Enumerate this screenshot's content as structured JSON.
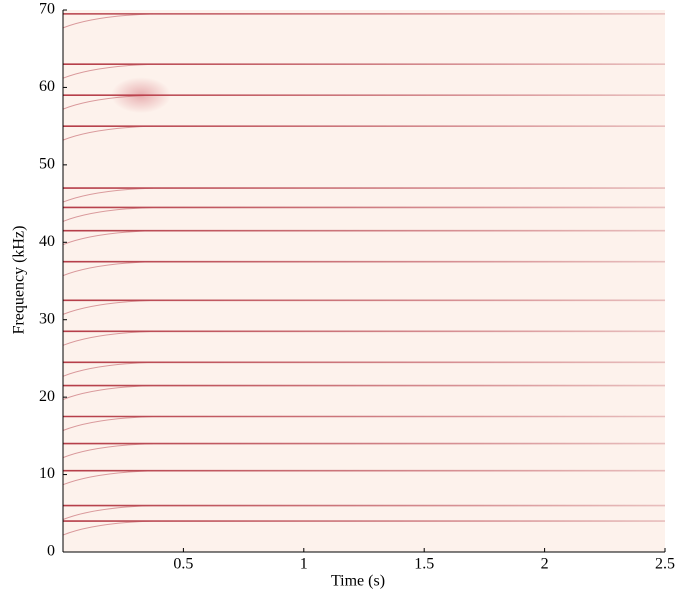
{
  "chart_data": {
    "type": "spectrogram",
    "xlabel": "Time (s)",
    "ylabel": "Frequency (kHz)",
    "xlim": [
      0,
      2.5
    ],
    "ylim": [
      0,
      70
    ],
    "xticks": [
      0.5,
      1,
      1.5,
      2,
      2.5
    ],
    "yticks": [
      0,
      10,
      20,
      30,
      40,
      50,
      60,
      70
    ],
    "background": "#fdf2ec",
    "color": "#b0303c",
    "ridges": [
      4,
      6,
      10.5,
      14,
      17.5,
      21.5,
      24.5,
      28.5,
      32.5,
      37.5,
      41.5,
      44.5,
      47,
      55,
      59,
      63,
      69.5
    ]
  }
}
